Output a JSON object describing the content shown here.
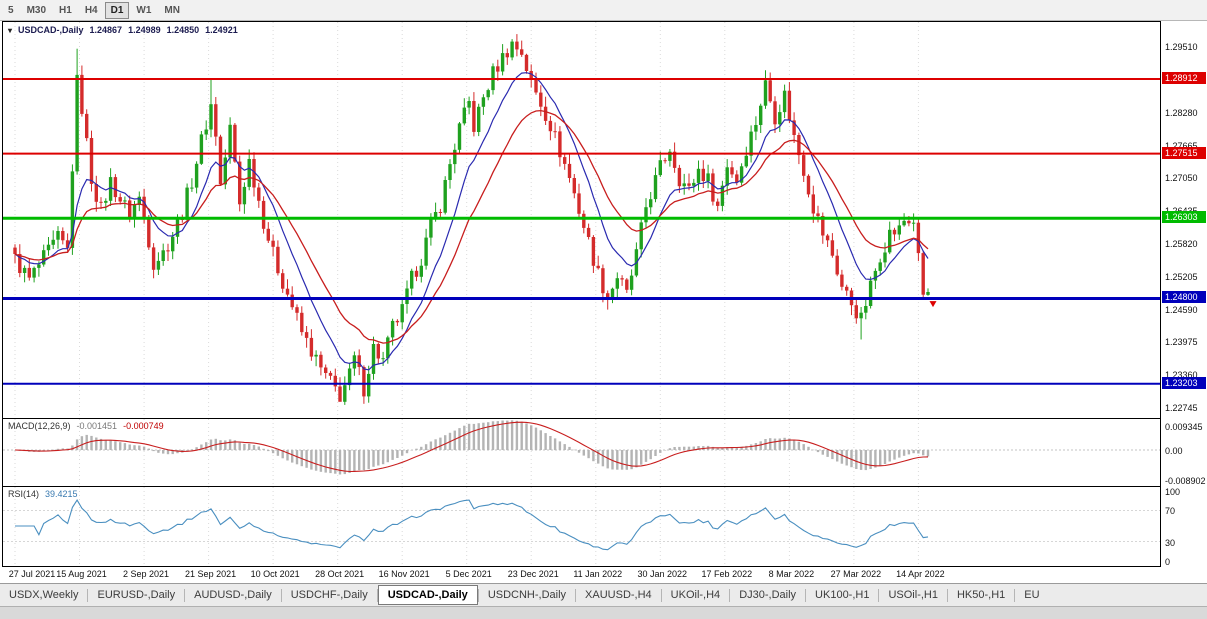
{
  "toolbar": {
    "timeframes": [
      {
        "label": "5",
        "active": false
      },
      {
        "label": "M30",
        "active": false
      },
      {
        "label": "H1",
        "active": false
      },
      {
        "label": "H4",
        "active": false
      },
      {
        "label": "D1",
        "active": true
      },
      {
        "label": "W1",
        "active": false
      },
      {
        "label": "MN",
        "active": false
      }
    ]
  },
  "chart_header": {
    "symbol": "USDCAD-,Daily",
    "open": "1.24867",
    "high": "1.24989",
    "low": "1.24850",
    "close": "1.24921"
  },
  "price_axis": {
    "ticks": [
      "1.29510",
      "1.28280",
      "1.27665",
      "1.27050",
      "1.26435",
      "1.25820",
      "1.25205",
      "1.24590",
      "1.23975",
      "1.23360",
      "1.22745"
    ]
  },
  "date_axis": {
    "labels": [
      "27 Jul 2021",
      "15 Aug 2021",
      "2 Sep 2021",
      "21 Sep 2021",
      "10 Oct 2021",
      "28 Oct 2021",
      "16 Nov 2021",
      "5 Dec 2021",
      "23 Dec 2021",
      "11 Jan 2022",
      "30 Jan 2022",
      "17 Feb 2022",
      "8 Mar 2022",
      "27 Mar 2022",
      "14 Apr 2022"
    ]
  },
  "indicators": {
    "macd": {
      "label": "MACD(12,26,9)",
      "value": "-0.001451",
      "signal_value": "-0.000749",
      "axis_labels": [
        "0.009345",
        "0.00",
        "-0.008902"
      ]
    },
    "rsi": {
      "label": "RSI(14)",
      "value": "39.4215",
      "axis_labels": [
        "100",
        "70",
        "30",
        "0"
      ],
      "levels": [
        70,
        30
      ]
    }
  },
  "tabs": [
    {
      "label": "USDX,Weekly",
      "active": false
    },
    {
      "label": "EURUSD-,Daily",
      "active": false
    },
    {
      "label": "AUDUSD-,Daily",
      "active": false
    },
    {
      "label": "USDCHF-,Daily",
      "active": false
    },
    {
      "label": "USDCAD-,Daily",
      "active": true
    },
    {
      "label": "USDCNH-,Daily",
      "active": false
    },
    {
      "label": "XAUUSD-,H4",
      "active": false
    },
    {
      "label": "UKOil-,H4",
      "active": false
    },
    {
      "label": "DJ30-,Daily",
      "active": false
    },
    {
      "label": "UK100-,H1",
      "active": false
    },
    {
      "label": "USOil-,H1",
      "active": false
    },
    {
      "label": "HK50-,H1",
      "active": false
    },
    {
      "label": "EU",
      "active": false
    }
  ],
  "chart_data": {
    "type": "candlestick",
    "symbol": "USDCAD",
    "timeframe": "Daily",
    "num_candles": 192,
    "candles_per_xtick": 13.5,
    "price_range": {
      "min": 1.2256,
      "max": 1.2998
    },
    "x_tick_labels": [
      "27 Jul 2021",
      "15 Aug 2021",
      "2 Sep 2021",
      "21 Sep 2021",
      "10 Oct 2021",
      "28 Oct 2021",
      "16 Nov 2021",
      "5 Dec 2021",
      "23 Dec 2021",
      "11 Jan 2022",
      "30 Jan 2022",
      "17 Feb 2022",
      "8 Mar 2022",
      "27 Mar 2022",
      "14 Apr 2022"
    ],
    "y_axis_ticks": [
      1.2951,
      1.2828,
      1.27665,
      1.2705,
      1.26435,
      1.2582,
      1.25205,
      1.2459,
      1.23975,
      1.2336,
      1.22745
    ],
    "close_anchors": [
      [
        0,
        1.2553
      ],
      [
        3,
        1.2515
      ],
      [
        6,
        1.2555
      ],
      [
        9,
        1.2592
      ],
      [
        11,
        1.257
      ],
      [
        13,
        1.2885
      ],
      [
        14,
        1.2838
      ],
      [
        15,
        1.277
      ],
      [
        16,
        1.2705
      ],
      [
        18,
        1.2645
      ],
      [
        20,
        1.27
      ],
      [
        22,
        1.2665
      ],
      [
        24,
        1.264
      ],
      [
        26,
        1.2668
      ],
      [
        27,
        1.2632
      ],
      [
        29,
        1.2548
      ],
      [
        31,
        1.2566
      ],
      [
        33,
        1.26
      ],
      [
        35,
        1.2642
      ],
      [
        37,
        1.2702
      ],
      [
        39,
        1.2775
      ],
      [
        41,
        1.2842
      ],
      [
        42,
        1.279
      ],
      [
        43,
        1.2692
      ],
      [
        45,
        1.2798
      ],
      [
        46,
        1.2732
      ],
      [
        47,
        1.2658
      ],
      [
        49,
        1.2738
      ],
      [
        50,
        1.2702
      ],
      [
        52,
        1.2626
      ],
      [
        54,
        1.2562
      ],
      [
        56,
        1.2512
      ],
      [
        58,
        1.2466
      ],
      [
        60,
        1.2416
      ],
      [
        62,
        1.2382
      ],
      [
        64,
        1.2346
      ],
      [
        66,
        1.2322
      ],
      [
        68,
        1.2298
      ],
      [
        70,
        1.2336
      ],
      [
        71,
        1.2366
      ],
      [
        73,
        1.2312
      ],
      [
        75,
        1.2388
      ],
      [
        77,
        1.2362
      ],
      [
        79,
        1.2426
      ],
      [
        81,
        1.2456
      ],
      [
        83,
        1.2516
      ],
      [
        85,
        1.2556
      ],
      [
        87,
        1.2616
      ],
      [
        89,
        1.2656
      ],
      [
        91,
        1.2732
      ],
      [
        93,
        1.28
      ],
      [
        95,
        1.2846
      ],
      [
        96,
        1.2802
      ],
      [
        98,
        1.2856
      ],
      [
        100,
        1.2902
      ],
      [
        102,
        1.2932
      ],
      [
        104,
        1.2958
      ],
      [
        106,
        1.2942
      ],
      [
        108,
        1.2882
      ],
      [
        110,
        1.2846
      ],
      [
        112,
        1.2806
      ],
      [
        114,
        1.2756
      ],
      [
        116,
        1.2706
      ],
      [
        118,
        1.2646
      ],
      [
        120,
        1.2586
      ],
      [
        122,
        1.2526
      ],
      [
        124,
        1.2482
      ],
      [
        126,
        1.2522
      ],
      [
        128,
        1.2486
      ],
      [
        130,
        1.2562
      ],
      [
        132,
        1.2652
      ],
      [
        135,
        1.2726
      ],
      [
        137,
        1.2762
      ],
      [
        139,
        1.2706
      ],
      [
        141,
        1.2682
      ],
      [
        143,
        1.2722
      ],
      [
        145,
        1.2702
      ],
      [
        147,
        1.2652
      ],
      [
        149,
        1.2732
      ],
      [
        151,
        1.2702
      ],
      [
        153,
        1.2762
      ],
      [
        155,
        1.2812
      ],
      [
        157,
        1.2882
      ],
      [
        159,
        1.2822
      ],
      [
        161,
        1.2862
      ],
      [
        163,
        1.2782
      ],
      [
        165,
        1.2722
      ],
      [
        167,
        1.2652
      ],
      [
        169,
        1.2602
      ],
      [
        171,
        1.2562
      ],
      [
        173,
        1.2502
      ],
      [
        175,
        1.2472
      ],
      [
        177,
        1.244
      ],
      [
        179,
        1.2502
      ],
      [
        181,
        1.2562
      ],
      [
        183,
        1.2602
      ],
      [
        185,
        1.2608
      ],
      [
        186,
        1.2626
      ],
      [
        188,
        1.2622
      ],
      [
        189,
        1.2565
      ],
      [
        190,
        1.2487
      ],
      [
        191,
        1.24921
      ]
    ],
    "special_wicks": {
      "high": {
        "13": 1.2948,
        "41": 1.2893,
        "104": 1.2966
      },
      "low": {
        "68": 1.2288,
        "177": 1.2403
      }
    },
    "last_candle": {
      "open": 1.24867,
      "high": 1.24989,
      "low": 1.2485,
      "close": 1.24921
    },
    "horizontal_lines": [
      {
        "value": 1.28912,
        "color": "#dd0000",
        "width": 2
      },
      {
        "value": 1.27515,
        "color": "#dd0000",
        "width": 2
      },
      {
        "value": 1.26303,
        "color": "#00bb00",
        "width": 3
      },
      {
        "value": 1.248,
        "color": "#0000bb",
        "width": 3
      },
      {
        "value": 1.23203,
        "color": "#0000bb",
        "width": 2
      }
    ],
    "badges": [
      {
        "value": "1.28912",
        "color": "#dd0000"
      },
      {
        "value": "1.27515",
        "color": "#dd0000"
      },
      {
        "value": "1.26303",
        "color": "#00bb00"
      },
      {
        "value": "1.24800",
        "color": "#0000bb"
      },
      {
        "value": "1.23203",
        "color": "#0000bb"
      }
    ],
    "moving_averages": [
      {
        "period": 10,
        "color": "#2a2ab0"
      },
      {
        "period": 21,
        "color": "#c81e1e"
      }
    ],
    "marker": {
      "type": "sell-arrow",
      "color": "#dd0000"
    },
    "up_color": "#1fa11f",
    "down_color": "#d42b2b",
    "macd_hist_color": "#b4b4b4",
    "macd_signal_color": "#c81e1e",
    "rsi_color": "#4a8fc0",
    "grid_color": "#dadada"
  }
}
